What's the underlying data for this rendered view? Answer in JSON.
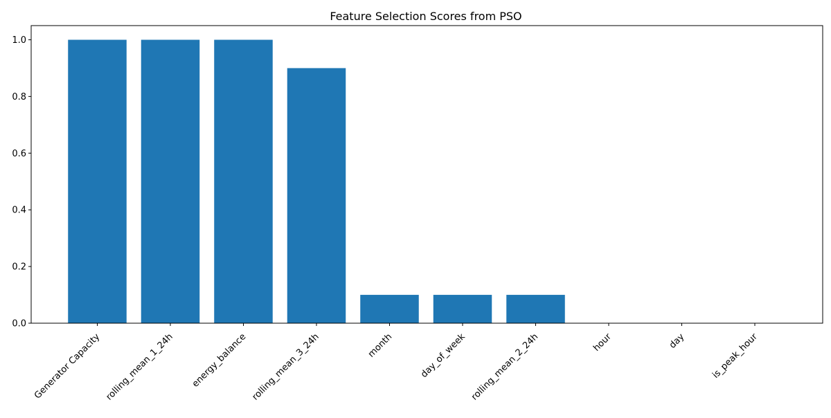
{
  "chart_data": {
    "type": "bar",
    "title": "Feature Selection Scores from PSO",
    "xlabel": "",
    "ylabel": "",
    "categories": [
      "Generator Capacity",
      "rolling_mean_1_24h",
      "energy_balance",
      "rolling_mean_3_24h",
      "month",
      "day_of_week",
      "rolling_mean_2_24h",
      "hour",
      "day",
      "is_peak_hour"
    ],
    "values": [
      1.0,
      1.0,
      1.0,
      0.9,
      0.1,
      0.1,
      0.1,
      0.0,
      0.0,
      0.0
    ],
    "ylim": [
      0,
      1.05
    ],
    "yticks": [
      0.0,
      0.2,
      0.4,
      0.6,
      0.8,
      1.0
    ],
    "ytick_labels": [
      "0.0",
      "0.2",
      "0.4",
      "0.6",
      "0.8",
      "1.0"
    ],
    "bar_color": "#1f77b4",
    "grid": false,
    "xtick_rotation_deg": 45
  }
}
